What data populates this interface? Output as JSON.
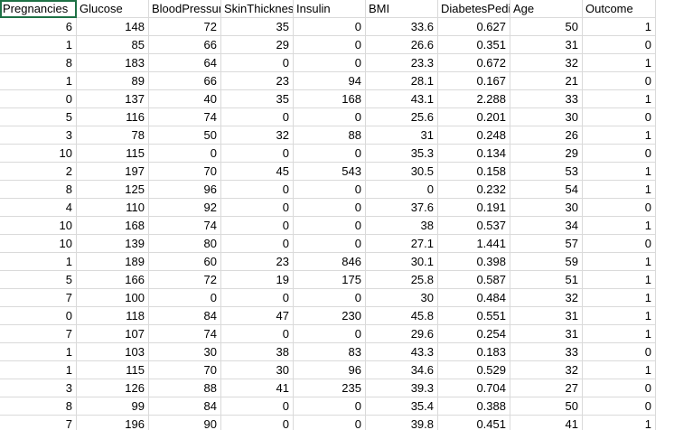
{
  "columns": [
    "Pregnancies",
    "Glucose",
    "BloodPressure",
    "SkinThickness",
    "Insulin",
    "BMI",
    "DiabetesPedigreeFunction",
    "Age",
    "Outcome"
  ],
  "rows": [
    [
      "6",
      "148",
      "72",
      "35",
      "0",
      "33.6",
      "0.627",
      "50",
      "1"
    ],
    [
      "1",
      "85",
      "66",
      "29",
      "0",
      "26.6",
      "0.351",
      "31",
      "0"
    ],
    [
      "8",
      "183",
      "64",
      "0",
      "0",
      "23.3",
      "0.672",
      "32",
      "1"
    ],
    [
      "1",
      "89",
      "66",
      "23",
      "94",
      "28.1",
      "0.167",
      "21",
      "0"
    ],
    [
      "0",
      "137",
      "40",
      "35",
      "168",
      "43.1",
      "2.288",
      "33",
      "1"
    ],
    [
      "5",
      "116",
      "74",
      "0",
      "0",
      "25.6",
      "0.201",
      "30",
      "0"
    ],
    [
      "3",
      "78",
      "50",
      "32",
      "88",
      "31",
      "0.248",
      "26",
      "1"
    ],
    [
      "10",
      "115",
      "0",
      "0",
      "0",
      "35.3",
      "0.134",
      "29",
      "0"
    ],
    [
      "2",
      "197",
      "70",
      "45",
      "543",
      "30.5",
      "0.158",
      "53",
      "1"
    ],
    [
      "8",
      "125",
      "96",
      "0",
      "0",
      "0",
      "0.232",
      "54",
      "1"
    ],
    [
      "4",
      "110",
      "92",
      "0",
      "0",
      "37.6",
      "0.191",
      "30",
      "0"
    ],
    [
      "10",
      "168",
      "74",
      "0",
      "0",
      "38",
      "0.537",
      "34",
      "1"
    ],
    [
      "10",
      "139",
      "80",
      "0",
      "0",
      "27.1",
      "1.441",
      "57",
      "0"
    ],
    [
      "1",
      "189",
      "60",
      "23",
      "846",
      "30.1",
      "0.398",
      "59",
      "1"
    ],
    [
      "5",
      "166",
      "72",
      "19",
      "175",
      "25.8",
      "0.587",
      "51",
      "1"
    ],
    [
      "7",
      "100",
      "0",
      "0",
      "0",
      "30",
      "0.484",
      "32",
      "1"
    ],
    [
      "0",
      "118",
      "84",
      "47",
      "230",
      "45.8",
      "0.551",
      "31",
      "1"
    ],
    [
      "7",
      "107",
      "74",
      "0",
      "0",
      "29.6",
      "0.254",
      "31",
      "1"
    ],
    [
      "1",
      "103",
      "30",
      "38",
      "83",
      "43.3",
      "0.183",
      "33",
      "0"
    ],
    [
      "1",
      "115",
      "70",
      "30",
      "96",
      "34.6",
      "0.529",
      "32",
      "1"
    ],
    [
      "3",
      "126",
      "88",
      "41",
      "235",
      "39.3",
      "0.704",
      "27",
      "0"
    ],
    [
      "8",
      "99",
      "84",
      "0",
      "0",
      "35.4",
      "0.388",
      "50",
      "0"
    ],
    [
      "7",
      "196",
      "90",
      "0",
      "0",
      "39.8",
      "0.451",
      "41",
      "1"
    ]
  ],
  "selected_cell": "A1"
}
